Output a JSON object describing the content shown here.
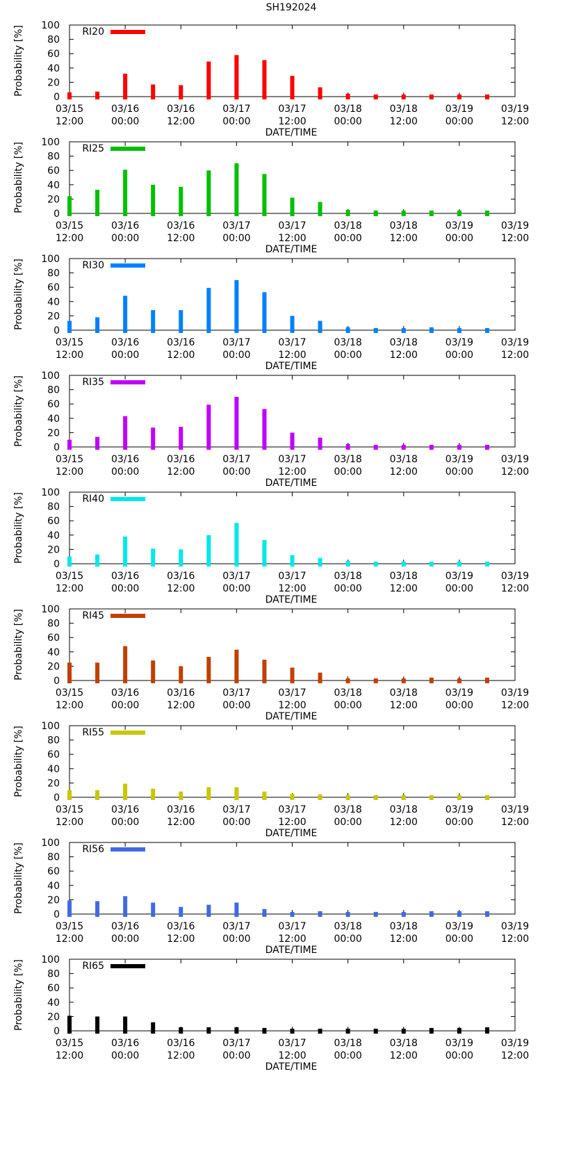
{
  "figure_title": "SH192024",
  "chart_data": [
    {
      "type": "bar",
      "series_label": "RI20",
      "color": "#ff0000",
      "title": "SH192024",
      "xlabel": "DATE/TIME",
      "ylabel": "Probability [%]",
      "ylim": [
        0,
        100
      ],
      "yticks": [
        "0",
        "20",
        "40",
        "60",
        "80",
        "100"
      ],
      "xticks": [
        [
          "03/15",
          "12:00"
        ],
        [
          "03/16",
          "00:00"
        ],
        [
          "03/16",
          "12:00"
        ],
        [
          "03/17",
          "00:00"
        ],
        [
          "03/17",
          "12:00"
        ],
        [
          "03/18",
          "00:00"
        ],
        [
          "03/18",
          "12:00"
        ],
        [
          "03/19",
          "00:00"
        ],
        [
          "03/19",
          "12:00"
        ]
      ],
      "x_hours": [
        0,
        6,
        12,
        18,
        24,
        30,
        36,
        42,
        48,
        54,
        60,
        66,
        72,
        78,
        84,
        90
      ],
      "values": [
        6,
        7,
        32,
        17,
        16,
        49,
        58,
        51,
        29,
        13,
        4,
        3,
        3,
        3,
        3,
        3
      ]
    },
    {
      "type": "bar",
      "series_label": "RI25",
      "color": "#00c000",
      "title": "SH192024",
      "xlabel": "DATE/TIME",
      "ylabel": "Probability [%]",
      "ylim": [
        0,
        100
      ],
      "yticks": [
        "0",
        "20",
        "40",
        "60",
        "80",
        "100"
      ],
      "xticks": [
        [
          "03/15",
          "12:00"
        ],
        [
          "03/16",
          "00:00"
        ],
        [
          "03/16",
          "12:00"
        ],
        [
          "03/17",
          "00:00"
        ],
        [
          "03/17",
          "12:00"
        ],
        [
          "03/18",
          "00:00"
        ],
        [
          "03/18",
          "12:00"
        ],
        [
          "03/19",
          "00:00"
        ],
        [
          "03/19",
          "12:00"
        ]
      ],
      "x_hours": [
        0,
        6,
        12,
        18,
        24,
        30,
        36,
        42,
        48,
        54,
        60,
        66,
        72,
        78,
        84,
        90
      ],
      "values": [
        24,
        33,
        61,
        40,
        37,
        60,
        70,
        55,
        22,
        16,
        5,
        4,
        4,
        4,
        4,
        4
      ]
    },
    {
      "type": "bar",
      "series_label": "RI30",
      "color": "#0080ff",
      "title": "SH192024",
      "xlabel": "DATE/TIME",
      "ylabel": "Probability [%]",
      "ylim": [
        0,
        100
      ],
      "yticks": [
        "0",
        "20",
        "40",
        "60",
        "80",
        "100"
      ],
      "xticks": [
        [
          "03/15",
          "12:00"
        ],
        [
          "03/16",
          "00:00"
        ],
        [
          "03/16",
          "12:00"
        ],
        [
          "03/17",
          "00:00"
        ],
        [
          "03/17",
          "12:00"
        ],
        [
          "03/18",
          "00:00"
        ],
        [
          "03/18",
          "12:00"
        ],
        [
          "03/19",
          "00:00"
        ],
        [
          "03/19",
          "12:00"
        ]
      ],
      "x_hours": [
        0,
        6,
        12,
        18,
        24,
        30,
        36,
        42,
        48,
        54,
        60,
        66,
        72,
        78,
        84,
        90
      ],
      "values": [
        13,
        18,
        48,
        28,
        28,
        59,
        70,
        53,
        20,
        13,
        4,
        3,
        3,
        4,
        3,
        3
      ]
    },
    {
      "type": "bar",
      "series_label": "RI35",
      "color": "#c000ff",
      "title": "SH192024",
      "xlabel": "DATE/TIME",
      "ylabel": "Probability [%]",
      "ylim": [
        0,
        100
      ],
      "yticks": [
        "0",
        "20",
        "40",
        "60",
        "80",
        "100"
      ],
      "xticks": [
        [
          "03/15",
          "12:00"
        ],
        [
          "03/16",
          "00:00"
        ],
        [
          "03/16",
          "12:00"
        ],
        [
          "03/17",
          "00:00"
        ],
        [
          "03/17",
          "12:00"
        ],
        [
          "03/18",
          "00:00"
        ],
        [
          "03/18",
          "12:00"
        ],
        [
          "03/19",
          "00:00"
        ],
        [
          "03/19",
          "12:00"
        ]
      ],
      "x_hours": [
        0,
        6,
        12,
        18,
        24,
        30,
        36,
        42,
        48,
        54,
        60,
        66,
        72,
        78,
        84,
        90
      ],
      "values": [
        10,
        14,
        43,
        27,
        28,
        59,
        70,
        53,
        20,
        13,
        4,
        3,
        3,
        3,
        3,
        3
      ]
    },
    {
      "type": "bar",
      "series_label": "RI40",
      "color": "#00e8e8",
      "title": "SH192024",
      "xlabel": "DATE/TIME",
      "ylabel": "Probability [%]",
      "ylim": [
        0,
        100
      ],
      "yticks": [
        "0",
        "20",
        "40",
        "60",
        "80",
        "100"
      ],
      "xticks": [
        [
          "03/15",
          "12:00"
        ],
        [
          "03/16",
          "00:00"
        ],
        [
          "03/16",
          "12:00"
        ],
        [
          "03/17",
          "00:00"
        ],
        [
          "03/17",
          "12:00"
        ],
        [
          "03/18",
          "00:00"
        ],
        [
          "03/18",
          "12:00"
        ],
        [
          "03/19",
          "00:00"
        ],
        [
          "03/19",
          "12:00"
        ]
      ],
      "x_hours": [
        0,
        6,
        12,
        18,
        24,
        30,
        36,
        42,
        48,
        54,
        60,
        66,
        72,
        78,
        84,
        90
      ],
      "values": [
        10,
        13,
        38,
        21,
        20,
        40,
        57,
        33,
        12,
        8,
        4,
        3,
        3,
        3,
        3,
        3
      ]
    },
    {
      "type": "bar",
      "series_label": "RI45",
      "color": "#c04000",
      "title": "SH192024",
      "xlabel": "DATE/TIME",
      "ylabel": "Probability [%]",
      "ylim": [
        0,
        100
      ],
      "yticks": [
        "0",
        "20",
        "40",
        "60",
        "80",
        "100"
      ],
      "xticks": [
        [
          "03/15",
          "12:00"
        ],
        [
          "03/16",
          "00:00"
        ],
        [
          "03/16",
          "12:00"
        ],
        [
          "03/17",
          "00:00"
        ],
        [
          "03/17",
          "12:00"
        ],
        [
          "03/18",
          "00:00"
        ],
        [
          "03/18",
          "12:00"
        ],
        [
          "03/19",
          "00:00"
        ],
        [
          "03/19",
          "12:00"
        ]
      ],
      "x_hours": [
        0,
        6,
        12,
        18,
        24,
        30,
        36,
        42,
        48,
        54,
        60,
        66,
        72,
        78,
        84,
        90
      ],
      "values": [
        25,
        25,
        48,
        28,
        20,
        33,
        43,
        29,
        18,
        11,
        3,
        3,
        3,
        4,
        3,
        4
      ]
    },
    {
      "type": "bar",
      "series_label": "RI55",
      "color": "#c8c800",
      "title": "SH192024",
      "xlabel": "DATE/TIME",
      "ylabel": "Probability [%]",
      "ylim": [
        0,
        100
      ],
      "yticks": [
        "0",
        "20",
        "40",
        "60",
        "80",
        "100"
      ],
      "xticks": [
        [
          "03/15",
          "12:00"
        ],
        [
          "03/16",
          "00:00"
        ],
        [
          "03/16",
          "12:00"
        ],
        [
          "03/17",
          "00:00"
        ],
        [
          "03/17",
          "12:00"
        ],
        [
          "03/18",
          "00:00"
        ],
        [
          "03/18",
          "12:00"
        ],
        [
          "03/19",
          "00:00"
        ],
        [
          "03/19",
          "12:00"
        ]
      ],
      "x_hours": [
        0,
        6,
        12,
        18,
        24,
        30,
        36,
        42,
        48,
        54,
        60,
        66,
        72,
        78,
        84,
        90
      ],
      "values": [
        10,
        10,
        19,
        12,
        8,
        14,
        14,
        8,
        5,
        4,
        3,
        3,
        3,
        3,
        3,
        3
      ]
    },
    {
      "type": "bar",
      "series_label": "RI56",
      "color": "#4169e1",
      "title": "SH192024",
      "xlabel": "DATE/TIME",
      "ylabel": "Probability [%]",
      "ylim": [
        0,
        100
      ],
      "yticks": [
        "0",
        "20",
        "40",
        "60",
        "80",
        "100"
      ],
      "xticks": [
        [
          "03/15",
          "12:00"
        ],
        [
          "03/16",
          "00:00"
        ],
        [
          "03/16",
          "12:00"
        ],
        [
          "03/17",
          "00:00"
        ],
        [
          "03/17",
          "12:00"
        ],
        [
          "03/18",
          "00:00"
        ],
        [
          "03/18",
          "12:00"
        ],
        [
          "03/19",
          "00:00"
        ],
        [
          "03/19",
          "12:00"
        ]
      ],
      "x_hours": [
        0,
        6,
        12,
        18,
        24,
        30,
        36,
        42,
        48,
        54,
        60,
        66,
        72,
        78,
        84,
        90
      ],
      "values": [
        19,
        18,
        25,
        16,
        10,
        13,
        16,
        7,
        3,
        4,
        3,
        3,
        3,
        4,
        4,
        4
      ]
    },
    {
      "type": "bar",
      "series_label": "RI65",
      "color": "#000000",
      "title": "SH192024",
      "xlabel": "DATE/TIME",
      "ylabel": "Probability [%]",
      "ylim": [
        0,
        100
      ],
      "yticks": [
        "0",
        "20",
        "40",
        "60",
        "80",
        "100"
      ],
      "xticks": [
        [
          "03/15",
          "12:00"
        ],
        [
          "03/16",
          "00:00"
        ],
        [
          "03/16",
          "12:00"
        ],
        [
          "03/17",
          "00:00"
        ],
        [
          "03/17",
          "12:00"
        ],
        [
          "03/18",
          "00:00"
        ],
        [
          "03/18",
          "12:00"
        ],
        [
          "03/19",
          "00:00"
        ],
        [
          "03/19",
          "12:00"
        ]
      ],
      "x_hours": [
        0,
        6,
        12,
        18,
        24,
        30,
        36,
        42,
        48,
        54,
        60,
        66,
        72,
        78,
        84,
        90
      ],
      "values": [
        21,
        20,
        20,
        12,
        5,
        5,
        5,
        4,
        3,
        3,
        3,
        3,
        3,
        4,
        4,
        5
      ]
    }
  ]
}
